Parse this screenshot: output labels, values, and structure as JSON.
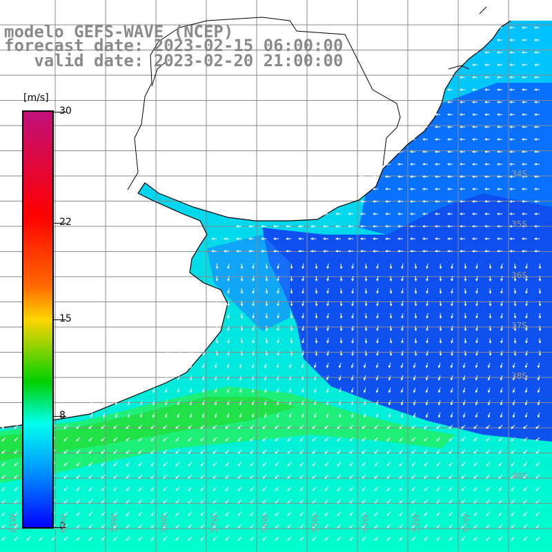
{
  "header": {
    "line1": "modelo GEFS-WAVE (NCEP)",
    "line2": "forecast date: 2023-02-15 06:00:00",
    "line3": "   valid date: 2023-02-20 21:00:00"
  },
  "colorbar": {
    "unit": "[m/s]",
    "ticks": [
      {
        "label": "30",
        "value": 30
      },
      {
        "label": "22",
        "value": 22
      },
      {
        "label": "15",
        "value": 15
      },
      {
        "label": "8",
        "value": 8
      },
      {
        "label": "0",
        "value": 0
      }
    ],
    "colors": [
      "#c0107a",
      "#ff0000",
      "#ff6a00",
      "#ffd500",
      "#00d000",
      "#00ffee",
      "#0090ff",
      "#0000ff"
    ]
  },
  "map": {
    "lat_labels": [
      "34S",
      "35S",
      "36S",
      "37S",
      "38S",
      "40S"
    ],
    "lon_labels": [
      "61W",
      "60W",
      "59W",
      "58W",
      "57W",
      "56W",
      "55W",
      "54W",
      "53W",
      "52W"
    ],
    "land_color": "#ffffff",
    "grid_color": "#888888",
    "arrow_color": "#ffffff"
  }
}
